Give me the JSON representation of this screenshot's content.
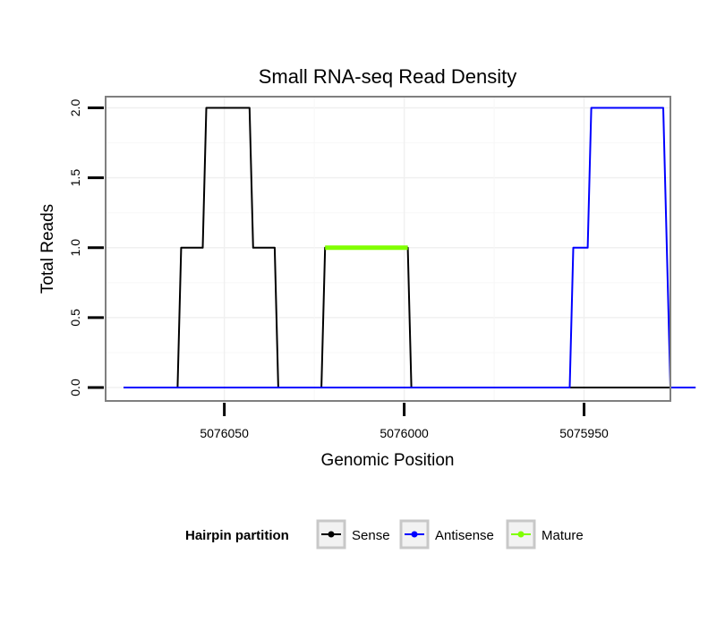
{
  "chart_data": {
    "type": "line",
    "title": "Small RNA-seq Read Density",
    "xlabel": "Genomic Position",
    "ylabel": "Total Reads",
    "xlim": [
      5076083,
      5075926
    ],
    "x_reversed": true,
    "ylim": [
      0,
      2.08
    ],
    "x_ticks": [
      5076050,
      5076000,
      5075950
    ],
    "x_tick_labels": [
      "5076050",
      "5076000",
      "5075950"
    ],
    "y_ticks": [
      0,
      0.5,
      1,
      1.5,
      2
    ],
    "y_tick_labels": [
      "0.0",
      "0.5",
      "1.0",
      "1.5",
      "2.0"
    ],
    "grid": true,
    "legend": {
      "title": "Hairpin partition",
      "position": "bottom",
      "entries": [
        {
          "name": "Sense",
          "color": "#000000"
        },
        {
          "name": "Antisense",
          "color": "#0000ff"
        },
        {
          "name": "Mature",
          "color": "#80ff00"
        }
      ]
    },
    "series": [
      {
        "name": "Sense",
        "color": "#000000",
        "x": [
          5076078,
          5076063,
          5076062,
          5076056,
          5076055,
          5076050,
          5076049,
          5076043,
          5076042,
          5076036,
          5076035,
          5076023,
          5076022,
          5075999,
          5075998,
          5075919
        ],
        "y": [
          0,
          0,
          1,
          1,
          2,
          2,
          2,
          2,
          1,
          1,
          0,
          0,
          1,
          1,
          0,
          0
        ]
      },
      {
        "name": "Antisense",
        "color": "#0000ff",
        "x": [
          5076078,
          5075954,
          5075953,
          5075949,
          5075948,
          5075928,
          5075926,
          5075919
        ],
        "y": [
          0,
          0,
          1,
          1,
          2,
          2,
          0,
          0
        ]
      },
      {
        "name": "Mature",
        "color": "#80ff00",
        "x": [
          5076022,
          5075999
        ],
        "y": [
          1,
          1
        ]
      }
    ]
  }
}
